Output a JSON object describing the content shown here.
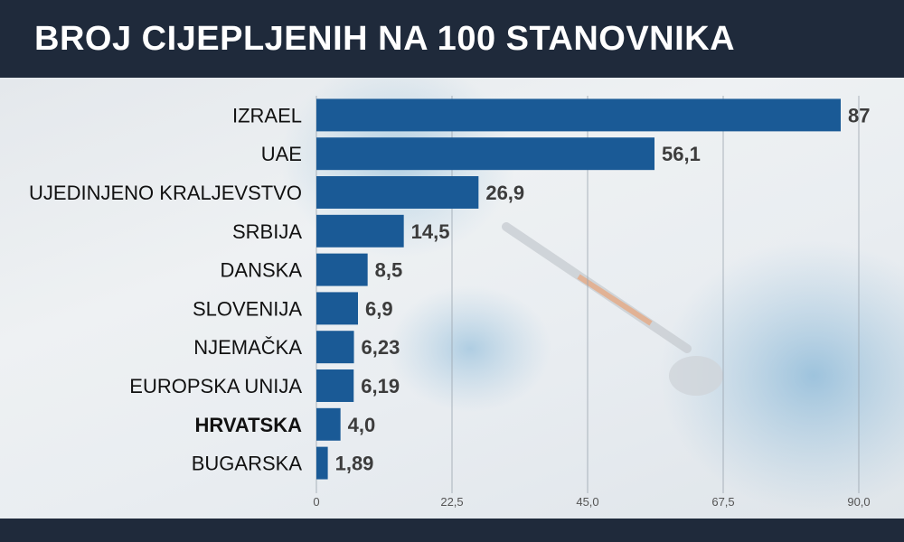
{
  "title": "BROJ CIJEPLJENIH NA 100 STANOVNIKA",
  "colors": {
    "bar": "#1a5a96",
    "background_dark": "#1f2a3b",
    "label_text": "#111111",
    "value_text": "#3c3c3c",
    "tick_text": "#555555",
    "grid": "#9aa4ae"
  },
  "chart_data": {
    "type": "bar",
    "orientation": "horizontal",
    "title": "BROJ CIJEPLJENIH NA 100 STANOVNIKA",
    "categories": [
      "IZRAEL",
      "UAE",
      "UJEDINJENO KRALJEVSTVO",
      "SRBIJA",
      "DANSKA",
      "SLOVENIJA",
      "NJEMAČKA",
      "EUROPSKA UNIJA",
      "HRVATSKA",
      "BUGARSKA"
    ],
    "values": [
      87,
      56.1,
      26.9,
      14.5,
      8.5,
      6.9,
      6.23,
      6.19,
      4.0,
      1.89
    ],
    "value_labels": [
      "87",
      "56,1",
      "26,9",
      "14,5",
      "8,5",
      "6,9",
      "6,23",
      "6,19",
      "4,0",
      "1,89"
    ],
    "highlighted_category": "HRVATSKA",
    "xlim": [
      0,
      90
    ],
    "xticks": [
      0,
      22.5,
      45,
      67.5,
      90
    ],
    "xtick_labels": [
      "0",
      "22,5",
      "45,0",
      "67,5",
      "90,0"
    ],
    "grid": true,
    "legend": "none"
  }
}
